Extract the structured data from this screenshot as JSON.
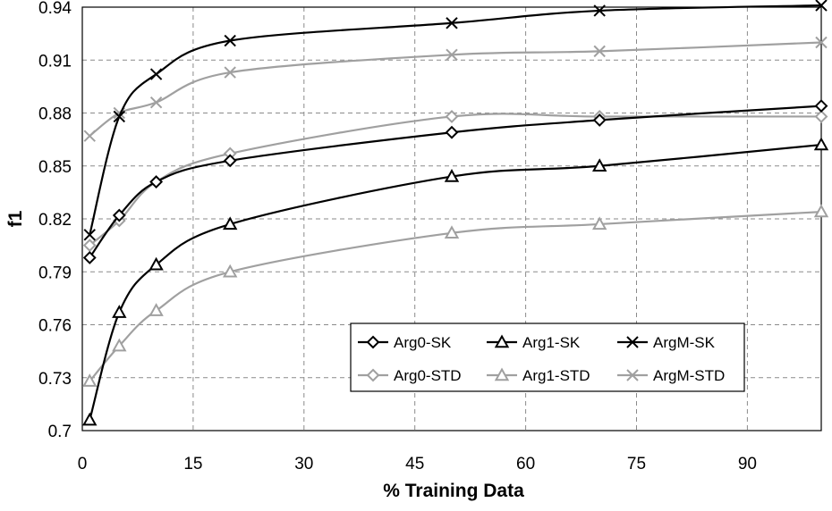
{
  "chart_data": {
    "type": "line",
    "xlabel": "% Training Data",
    "ylabel": "f1",
    "xlim": [
      0,
      100
    ],
    "ylim": [
      0.7,
      0.94
    ],
    "x_ticks": [
      "0",
      "15",
      "30",
      "45",
      "60",
      "75",
      "90"
    ],
    "x_tick_values": [
      0,
      15,
      30,
      45,
      60,
      75,
      90
    ],
    "y_ticks": [
      "0.7",
      "0.73",
      "0.76",
      "0.79",
      "0.82",
      "0.85",
      "0.88",
      "0.91",
      "0.94"
    ],
    "y_tick_values": [
      0.7,
      0.73,
      0.76,
      0.79,
      0.82,
      0.85,
      0.88,
      0.91,
      0.94
    ],
    "grid": true,
    "legend_position": "bottom-right",
    "x": [
      1,
      5,
      10,
      20,
      50,
      70,
      100
    ],
    "series": [
      {
        "name": "Arg0-SK",
        "marker": "diamond",
        "color": "#000000",
        "values": [
          0.798,
          0.822,
          0.841,
          0.853,
          0.869,
          0.876,
          0.884
        ]
      },
      {
        "name": "Arg1-SK",
        "marker": "triangle",
        "color": "#000000",
        "values": [
          0.706,
          0.767,
          0.794,
          0.817,
          0.844,
          0.85,
          0.862
        ]
      },
      {
        "name": "ArgM-SK",
        "marker": "x",
        "color": "#000000",
        "values": [
          0.811,
          0.878,
          0.902,
          0.921,
          0.931,
          0.938,
          0.941
        ]
      },
      {
        "name": "Arg0-STD",
        "marker": "diamond",
        "color": "#a0a0a0",
        "values": [
          0.805,
          0.819,
          0.841,
          0.857,
          0.878,
          0.878,
          0.878
        ]
      },
      {
        "name": "Arg1-STD",
        "marker": "triangle",
        "color": "#a0a0a0",
        "values": [
          0.728,
          0.748,
          0.768,
          0.79,
          0.812,
          0.817,
          0.824
        ]
      },
      {
        "name": "ArgM-STD",
        "marker": "x",
        "color": "#a0a0a0",
        "values": [
          0.867,
          0.88,
          0.886,
          0.903,
          0.913,
          0.915,
          0.92
        ]
      }
    ]
  }
}
